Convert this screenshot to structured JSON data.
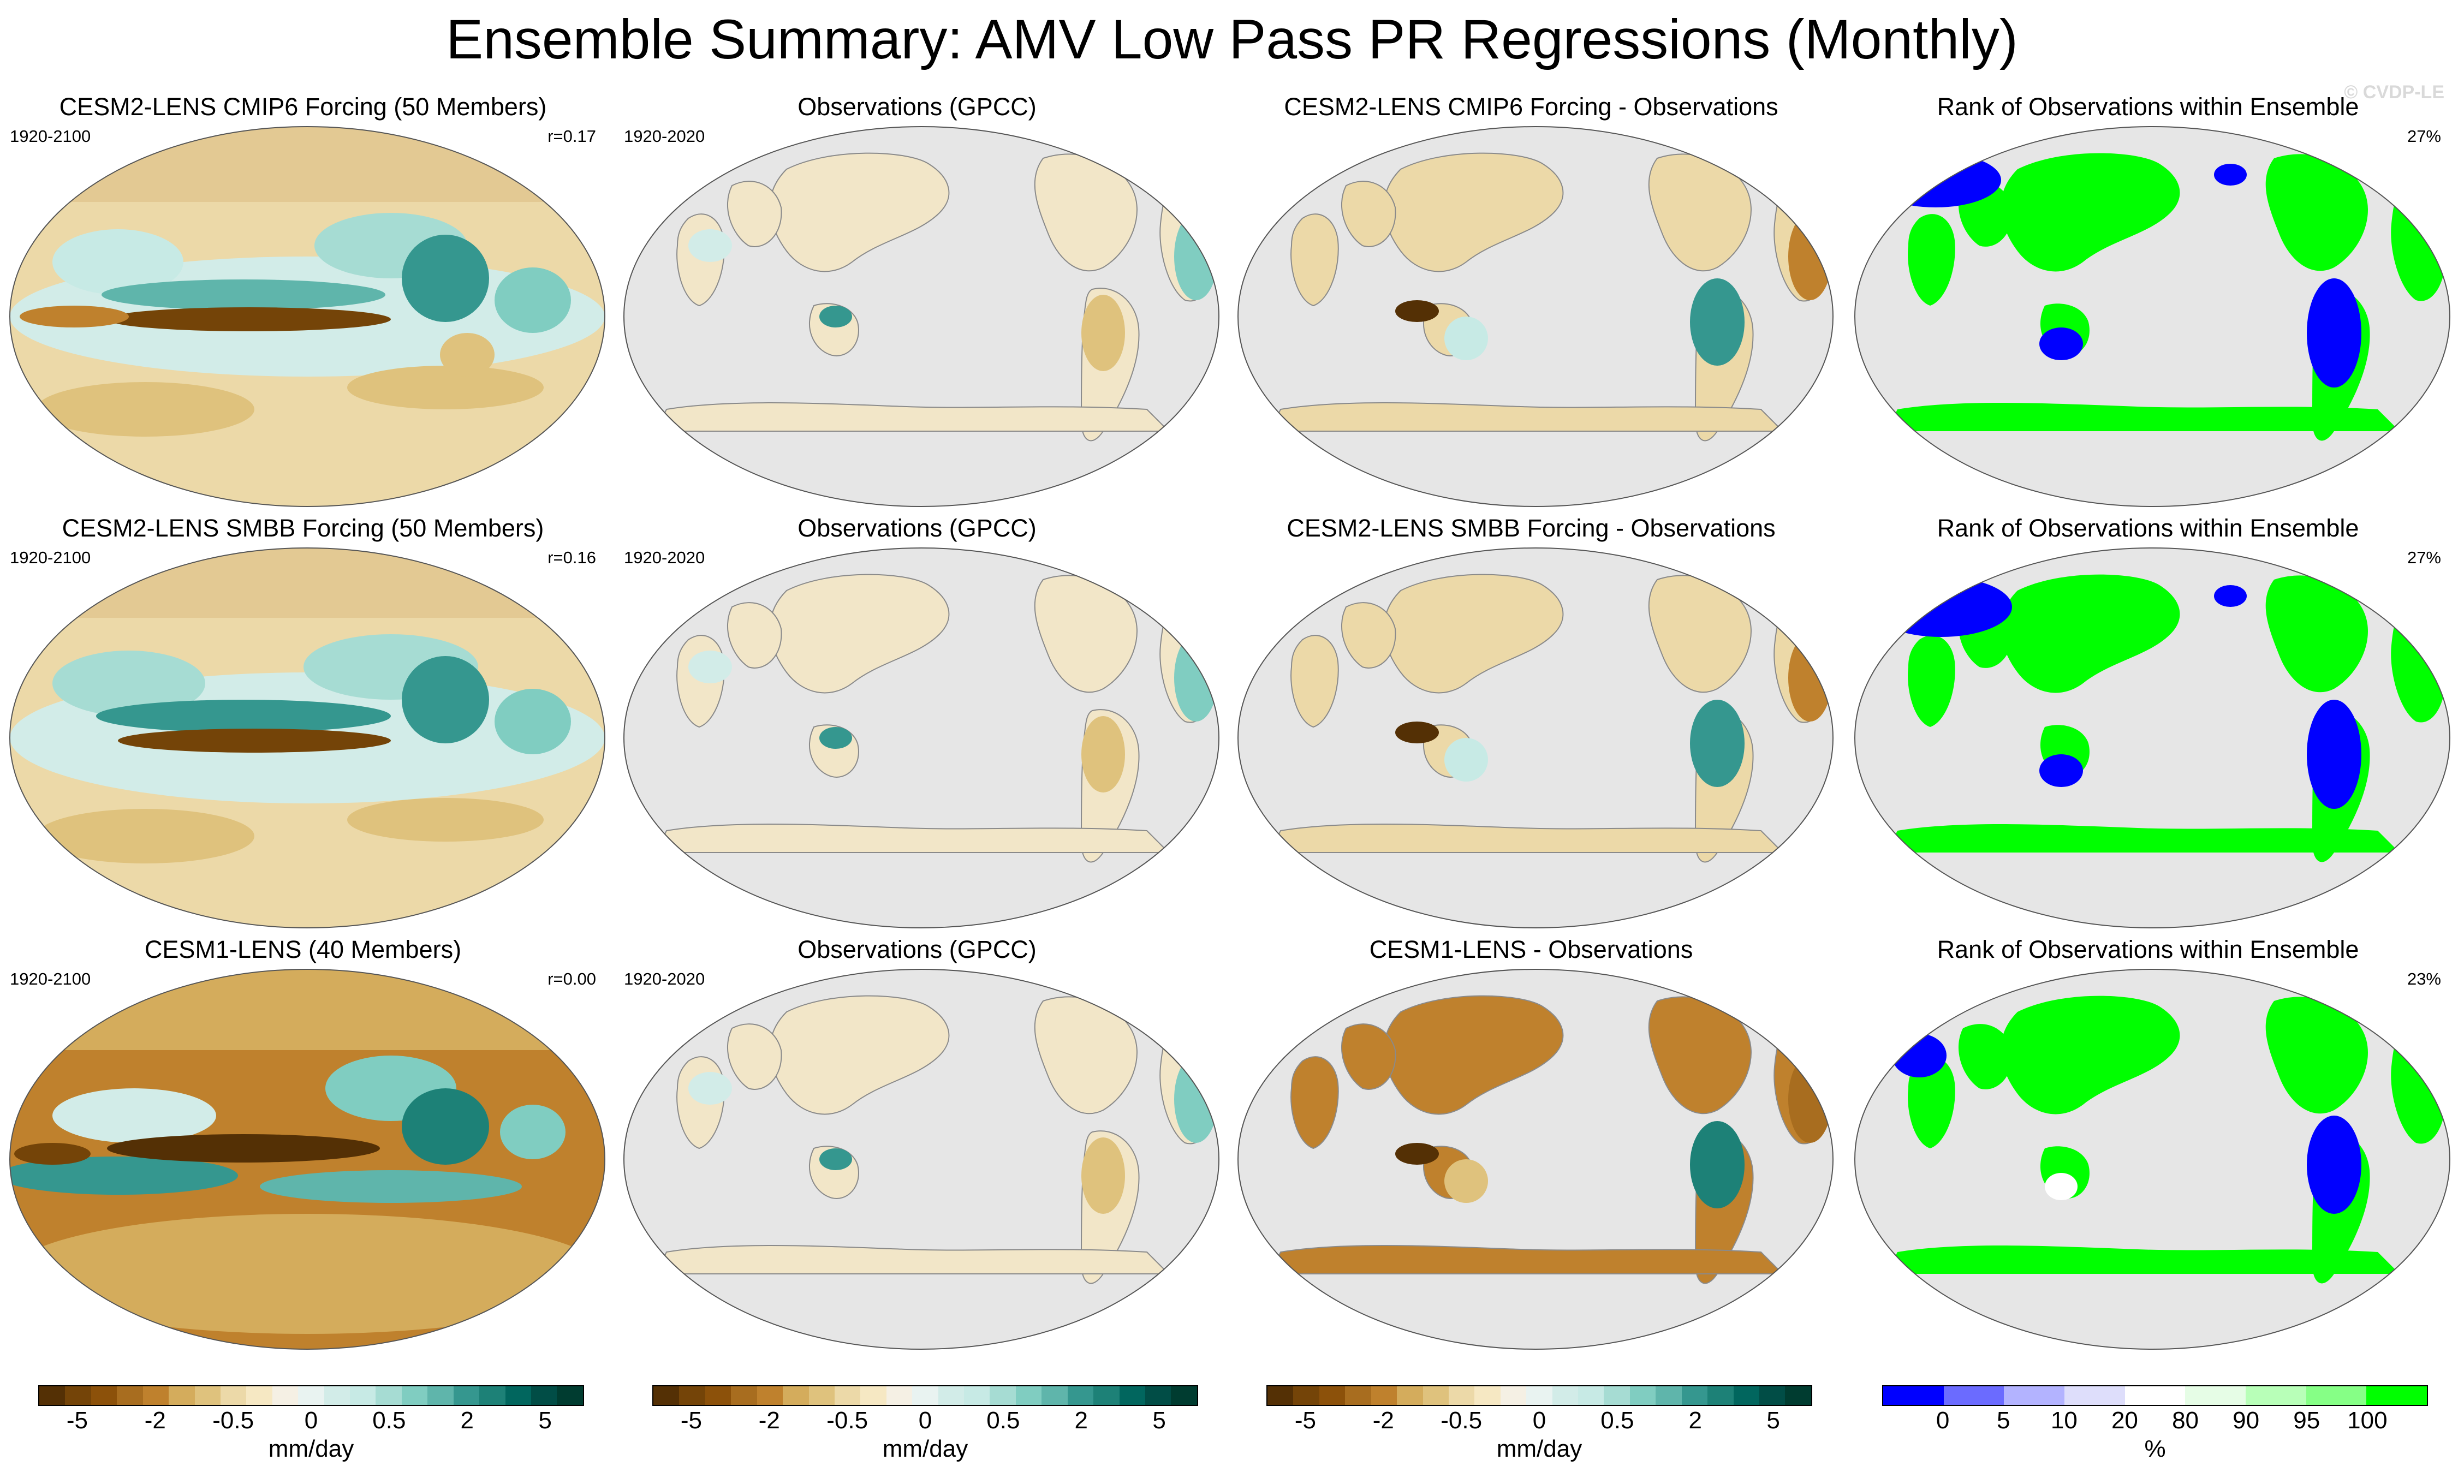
{
  "title": "Ensemble Summary: AMV Low Pass PR Regressions (Monthly)",
  "watermark": "© CVDP-LE",
  "rows": [
    {
      "model": {
        "title": "CESM2-LENS CMIP6 Forcing (50 Members)",
        "years": "1920-2100",
        "corr": "r=0.17"
      },
      "obs": {
        "title": "Observations (GPCC)",
        "years": "1920-2020"
      },
      "diff": {
        "title": "CESM2-LENS CMIP6 Forcing - Observations"
      },
      "rank": {
        "title": "Rank of Observations within Ensemble",
        "pct": "27%"
      }
    },
    {
      "model": {
        "title": "CESM2-LENS SMBB Forcing (50 Members)",
        "years": "1920-2100",
        "corr": "r=0.16"
      },
      "obs": {
        "title": "Observations (GPCC)",
        "years": "1920-2020"
      },
      "diff": {
        "title": "CESM2-LENS SMBB Forcing - Observations"
      },
      "rank": {
        "title": "Rank of Observations within Ensemble",
        "pct": "27%"
      }
    },
    {
      "model": {
        "title": "CESM1-LENS (40 Members)",
        "years": "1920-2100",
        "corr": "r=0.00"
      },
      "obs": {
        "title": "Observations (GPCC)",
        "years": "1920-2020"
      },
      "diff": {
        "title": "CESM1-LENS - Observations"
      },
      "rank": {
        "title": "Rank of Observations within Ensemble",
        "pct": "23%"
      }
    }
  ],
  "colorbars": {
    "precip": {
      "colors": [
        "#543005",
        "#744408",
        "#8c510a",
        "#a86d1f",
        "#bf812d",
        "#d4ac5c",
        "#dfc27d",
        "#ecd9a8",
        "#f6e8c3",
        "#f5f0e4",
        "#e9f3f1",
        "#d2ece8",
        "#c7eae5",
        "#a6dcd3",
        "#80cdc1",
        "#5fb5ab",
        "#35978f",
        "#1d8177",
        "#01665e",
        "#014d46",
        "#003c30"
      ],
      "tick_labels": [
        "-5",
        "-2",
        "-0.5",
        "0",
        "0.5",
        "2",
        "5"
      ],
      "unit": "mm/day"
    },
    "rank": {
      "colors": [
        "#0000ff",
        "#6b6bff",
        "#b3b3ff",
        "#dedefb",
        "#ffffff",
        "#e6fde6",
        "#b8ffb8",
        "#86ff86",
        "#00ff00"
      ],
      "tick_labels": [
        "0",
        "5",
        "10",
        "20",
        "80",
        "90",
        "95",
        "100"
      ],
      "unit": "%"
    }
  }
}
